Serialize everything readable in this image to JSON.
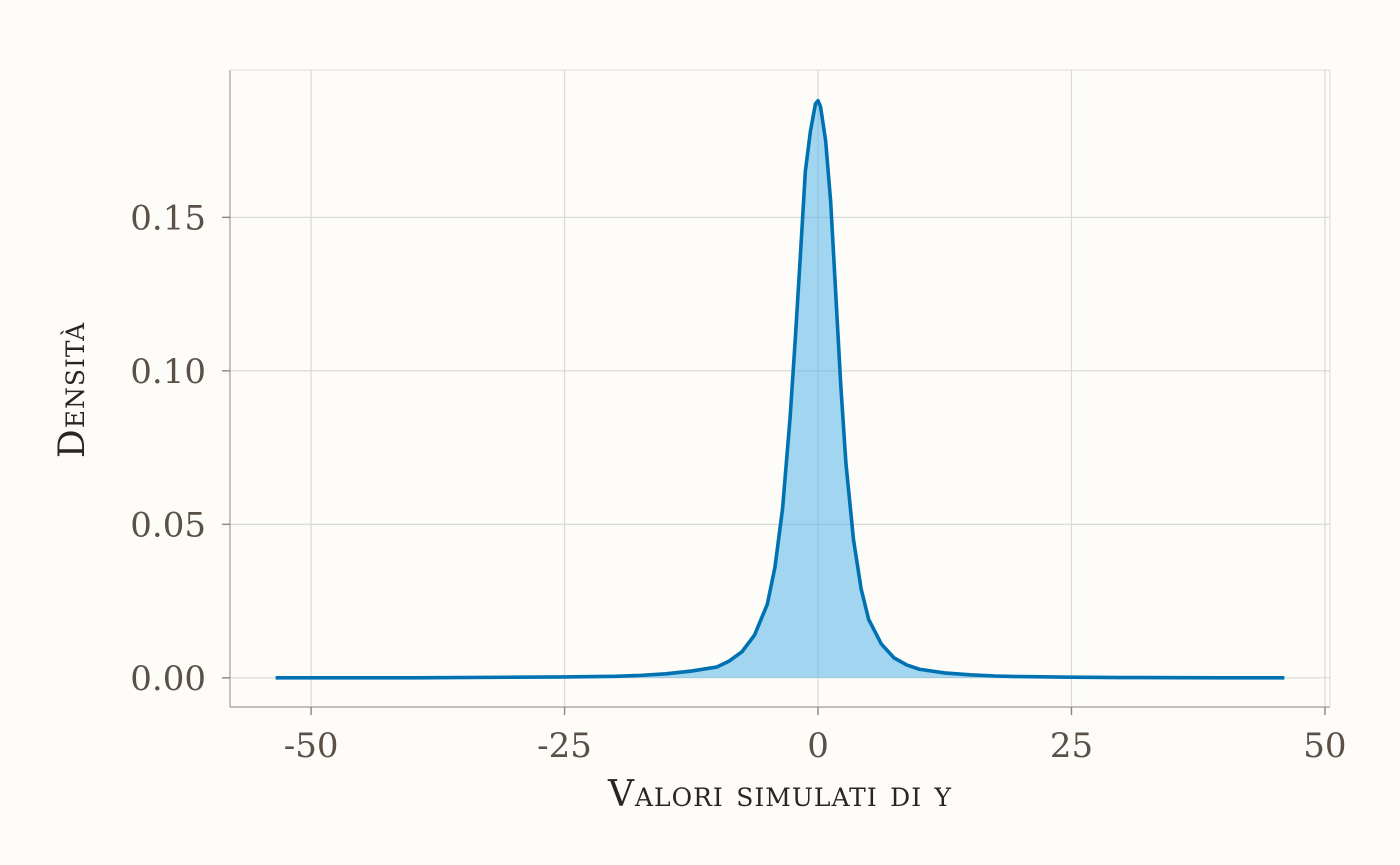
{
  "chart_data": {
    "type": "area",
    "title": "",
    "xlabel": "Valori simulati di y",
    "ylabel": "Densità",
    "xlim": [
      -58,
      50.5
    ],
    "ylim": [
      -0.0095,
      0.198
    ],
    "x_ticks": [
      -50,
      -25,
      0,
      25,
      50
    ],
    "x_tick_labels": [
      "-50",
      "-25",
      "0",
      "25",
      "50"
    ],
    "y_ticks": [
      0.0,
      0.05,
      0.1,
      0.15
    ],
    "y_tick_labels": [
      "0.00",
      "0.05",
      "0.10",
      "0.15"
    ],
    "grid": true,
    "legend": "none",
    "series": [
      {
        "x": [
          -53.5,
          -40,
          -30,
          -25,
          -20,
          -17.5,
          -15,
          -12.5,
          -10,
          -8.75,
          -7.5,
          -6.25,
          -5,
          -4.25,
          -3.5,
          -2.75,
          -2.25,
          -1.75,
          -1.25,
          -0.75,
          -0.25,
          0,
          0.25,
          0.75,
          1.25,
          1.75,
          2.25,
          2.75,
          3.5,
          4.25,
          5,
          6.25,
          7.5,
          8.75,
          10,
          12.5,
          15,
          17.5,
          20,
          25,
          30,
          40,
          46
        ],
        "y": [
          0.0,
          0.0,
          0.0002,
          0.0003,
          0.0005,
          0.0008,
          0.0013,
          0.0022,
          0.0035,
          0.0055,
          0.0085,
          0.014,
          0.024,
          0.036,
          0.055,
          0.085,
          0.11,
          0.137,
          0.165,
          0.178,
          0.187,
          0.188,
          0.186,
          0.175,
          0.155,
          0.125,
          0.095,
          0.07,
          0.045,
          0.029,
          0.019,
          0.011,
          0.0065,
          0.0042,
          0.0028,
          0.0016,
          0.001,
          0.0006,
          0.0004,
          0.0002,
          0.0001,
          0.0,
          0.0
        ]
      }
    ],
    "colors": {
      "line": "#0072b2",
      "fill": "#56b4e9",
      "grid": "#dcdad6",
      "frame": "#b0aca8",
      "axis": "#8a8680"
    }
  }
}
